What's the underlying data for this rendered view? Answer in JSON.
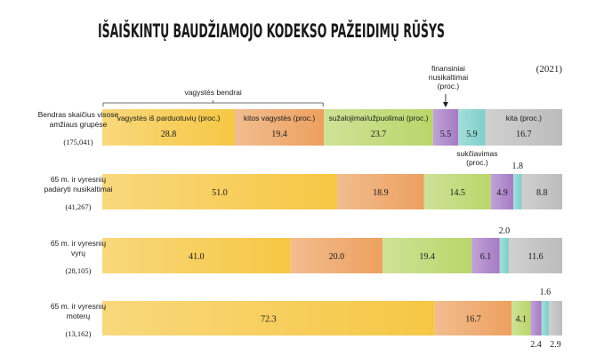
{
  "chart_data": {
    "type": "bar",
    "orientation": "horizontal-stacked-100",
    "title": "IŠAIŠKINTŲ BAUDŽIAMOJO KODEKSO PAŽEIDIMŲ RŪŠYS",
    "year": "(2021)",
    "group_label": "vagystės bendrai",
    "categories": [
      {
        "label": [
          "Bendras skaičius visose",
          "amžiaus grupėse"
        ],
        "count": "(175,041)"
      },
      {
        "label": [
          "65 m. ir vyresnių",
          "padaryti nusikaltimai"
        ],
        "count": "(41,267)"
      },
      {
        "label": [
          "65 m. ir vyresnių",
          "vyrų"
        ],
        "count": "(28,105)"
      },
      {
        "label": [
          "65 m. ir vyresnių",
          "moterų"
        ],
        "count": "(13,162)"
      }
    ],
    "series": [
      {
        "name": "vagystės iš parduotuvių (proc.)",
        "color": "#f6c744",
        "values": [
          28.8,
          51.0,
          41.0,
          72.3
        ]
      },
      {
        "name": "kitos vagystės (proc.)",
        "color": "#eda05f",
        "values": [
          19.4,
          18.9,
          20.0,
          16.7
        ]
      },
      {
        "name": "sužalojimai/užpuolimai (proc.)",
        "color": "#b9d66a",
        "values": [
          23.7,
          14.5,
          19.4,
          4.1
        ]
      },
      {
        "name": "finansiniai nusikaltimai (proc.)",
        "color": "#a57bc4",
        "values": [
          5.5,
          4.9,
          6.1,
          2.4
        ]
      },
      {
        "name": "sukčiavimas (proc.)",
        "color": "#7fcfcb",
        "values": [
          5.9,
          1.8,
          2.0,
          1.6
        ]
      },
      {
        "name": "kita (proc.)",
        "color": "#bcbcbc",
        "values": [
          16.7,
          8.8,
          11.6,
          2.9
        ]
      }
    ],
    "legend_placement": "inline-in-first-bar",
    "callouts": {
      "finansiniai": [
        "finansiniai",
        "nusikaltimai",
        "(proc.)"
      ],
      "sukciavimas": [
        "sukčiavimas",
        "(proc.)"
      ]
    }
  }
}
